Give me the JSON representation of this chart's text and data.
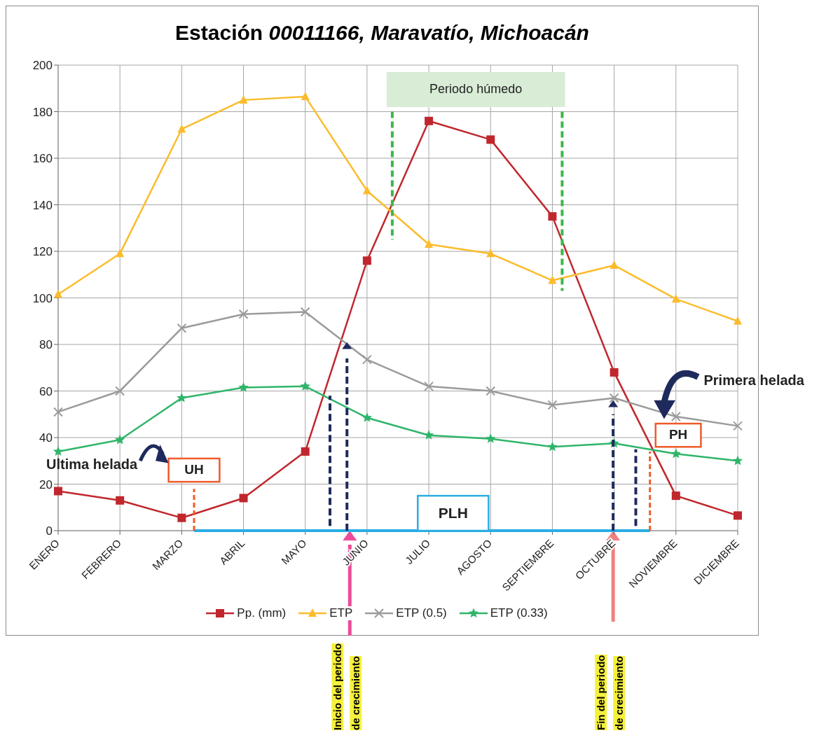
{
  "chart_data": {
    "type": "line",
    "title": "Estación 00011166, Maravatío, Michoacán",
    "categories": [
      "ENERO",
      "FEBRERO",
      "MARZO",
      "ABRIL",
      "MAYO",
      "JUNIO",
      "JULIO",
      "AGOSTO",
      "SEPTIEMBRE",
      "OCTUBRE",
      "NOVIEMBRE",
      "DICIEMBRE"
    ],
    "series": [
      {
        "name": "Pp. (mm)",
        "color": "#c0272d",
        "marker": "square",
        "values": [
          17,
          13,
          5.5,
          14,
          34,
          116,
          176,
          168,
          135,
          68,
          15,
          6.5
        ]
      },
      {
        "name": "ETP",
        "color": "#fbbc2c",
        "marker": "triangle",
        "values": [
          101.5,
          119,
          172.5,
          185,
          186.5,
          146,
          123,
          119,
          107.5,
          114,
          99.5,
          90
        ]
      },
      {
        "name": "ETP (0.5)",
        "color": "#9b9b9b",
        "marker": "cross",
        "values": [
          51,
          60,
          87,
          93,
          94,
          73.5,
          62,
          60,
          54,
          57,
          49,
          45
        ]
      },
      {
        "name": "ETP (0.33)",
        "color": "#2fb56a",
        "marker": "star",
        "values": [
          34,
          39,
          57,
          61.5,
          62,
          48.5,
          41,
          39.5,
          36,
          37.5,
          33,
          30
        ]
      }
    ],
    "ylim": [
      0,
      200
    ],
    "yticks": [
      0,
      20,
      40,
      60,
      80,
      100,
      120,
      140,
      160,
      180,
      200
    ],
    "grid": true,
    "legend": "bottom",
    "line_style": "solid",
    "annotations": [
      "Periodo húmedo",
      "Ultima helada",
      "UH",
      "Primera helada",
      "PH",
      "PLH",
      "Inicio del periodo de crecimiento",
      "Fin del periodo de crecimiento"
    ]
  }
}
